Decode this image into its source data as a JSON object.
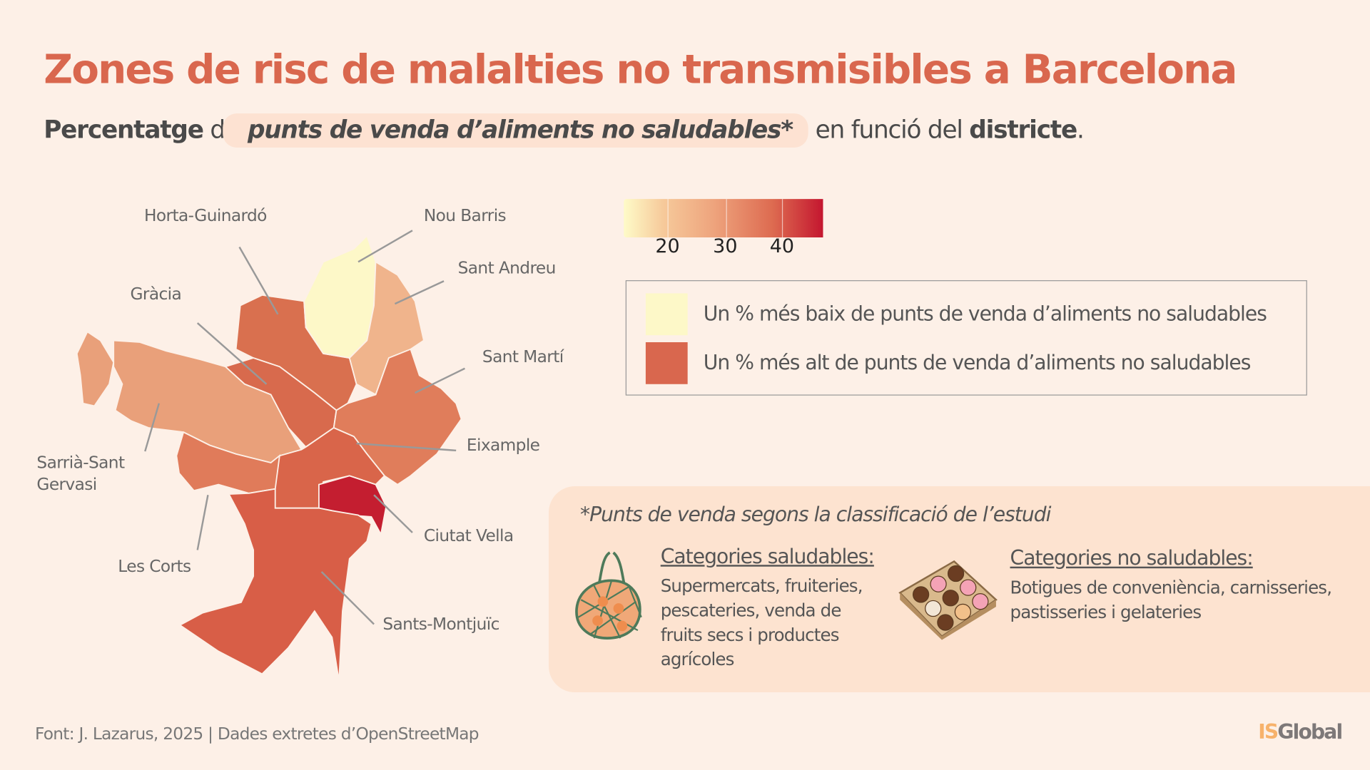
{
  "title": "Zones de risc de malalties no transmisibles a Barcelona",
  "subtitle": {
    "p1": "Percentatge",
    "p2": " de ",
    "p3": "punts de venda d’aliments no saludables*",
    "p4": " en funció del ",
    "p5": "districte",
    "p6": "."
  },
  "map": {
    "districts": [
      {
        "name": "Horta-Guinardó",
        "color": "#d9704f"
      },
      {
        "name": "Nou Barris",
        "color": "#fdf8c8"
      },
      {
        "name": "Sant Andreu",
        "color": "#f0b48c"
      },
      {
        "name": "Gràcia",
        "color": "#d86a4d"
      },
      {
        "name": "Sant Martí",
        "color": "#e07d5b"
      },
      {
        "name": "Sarrià-Sant Gervasi",
        "color": "#e9a07a"
      },
      {
        "name": "Eixample",
        "color": "#d9654a"
      },
      {
        "name": "Ciutat Vella",
        "color": "#c41e30"
      },
      {
        "name": "Les Corts",
        "color": "#e07b5a"
      },
      {
        "name": "Sants-Montjuïc",
        "color": "#d85e47"
      }
    ],
    "labels": {
      "sarria_1": "Sarrià-Sant",
      "sarria_2": "Gervasi"
    }
  },
  "colorbar": {
    "ticks": [
      "20",
      "30",
      "40"
    ],
    "low_color": "#fefbc8",
    "high_color": "#c4162f"
  },
  "legend": [
    {
      "label": "Un % més baix de punts de venda d’aliments no saludables",
      "color": "#fdf8c8"
    },
    {
      "label": "Un % més alt de punts de venda d’aliments no saludables",
      "color": "#d9674e"
    }
  ],
  "note": {
    "title": "*Punts de venda segons la classificació de l’estudi",
    "healthy": {
      "heading": "Categories saludables:",
      "text": "Supermercats, fruiteries, pescateries, venda de fruits secs i productes agrícoles",
      "icon": "grocery-bag-icon"
    },
    "unhealthy": {
      "heading": "Categories no saludables:",
      "text": "Botigues de conveniència, carnisseries, pastisseries i gelateries",
      "icon": "donut-box-icon"
    }
  },
  "footer": "Font: J. Lazarus, 2025  |  Dades extretes d’OpenStreetMap",
  "logo": {
    "a": "IS",
    "b": "Global",
    "color_a": "#f7b26b",
    "color_b": "#7d7878"
  }
}
